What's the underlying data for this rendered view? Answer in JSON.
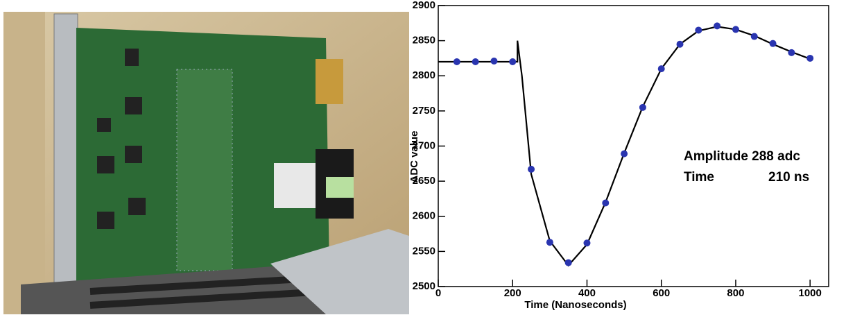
{
  "chart_data": {
    "type": "scatter",
    "x_label": "Time (Nanoseconds)",
    "y_label": "ADC value",
    "annotations": [
      "Amplitude 288 adc",
      "Time",
      "210 ns"
    ],
    "x": [
      50,
      100,
      150,
      200,
      250,
      300,
      350,
      400,
      450,
      500,
      550,
      600,
      650,
      700,
      750,
      800,
      850,
      900,
      950,
      1000
    ],
    "values": [
      2820,
      2820,
      2821,
      2820,
      2667,
      2563,
      2534,
      2562,
      2619,
      2689,
      2755,
      2810,
      2845,
      2865,
      2871,
      2866,
      2856,
      2846,
      2833,
      2825
    ],
    "color": "#2a35b0",
    "fit": {
      "type": "line",
      "color": "#000000",
      "x": [
        0,
        213,
        213,
        225,
        250,
        300,
        350,
        400,
        450,
        500,
        550,
        600,
        650,
        700,
        750,
        800,
        850,
        900,
        950,
        1000
      ],
      "values": [
        2820,
        2820,
        2850,
        2800,
        2660,
        2565,
        2530,
        2560,
        2620,
        2690,
        2756,
        2810,
        2845,
        2864,
        2870,
        2866,
        2857,
        2845,
        2834,
        2824
      ]
    },
    "xlim": [
      0,
      1050
    ],
    "ylim": [
      2500,
      2900
    ],
    "xticks": [
      0,
      200,
      400,
      600,
      800,
      1000
    ],
    "yticks": [
      2500,
      2550,
      2600,
      2650,
      2700,
      2750,
      2800,
      2850,
      2900
    ]
  }
}
